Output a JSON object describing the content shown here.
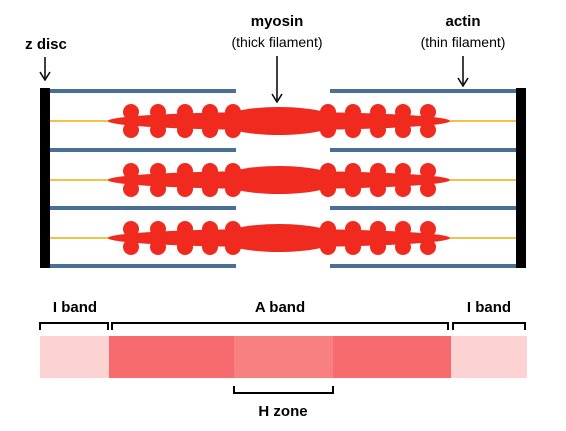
{
  "labels": {
    "z_disc": "z disc",
    "myosin": "myosin",
    "myosin_sub": "(thick filament)",
    "actin": "actin",
    "actin_sub": "(thin filament)",
    "i_band_left": "I band",
    "a_band": "A band",
    "i_band_right": "I band",
    "h_zone": "H zone"
  },
  "colors": {
    "z_disc": "#000000",
    "actin": "#4a6f96",
    "titin": "#f2c14a",
    "myosin": "#f02a1e",
    "i_band": "#fcd2d2",
    "a_band": "#f76a6e",
    "h_zone": "#f98080",
    "bracket": "#000000"
  }
}
